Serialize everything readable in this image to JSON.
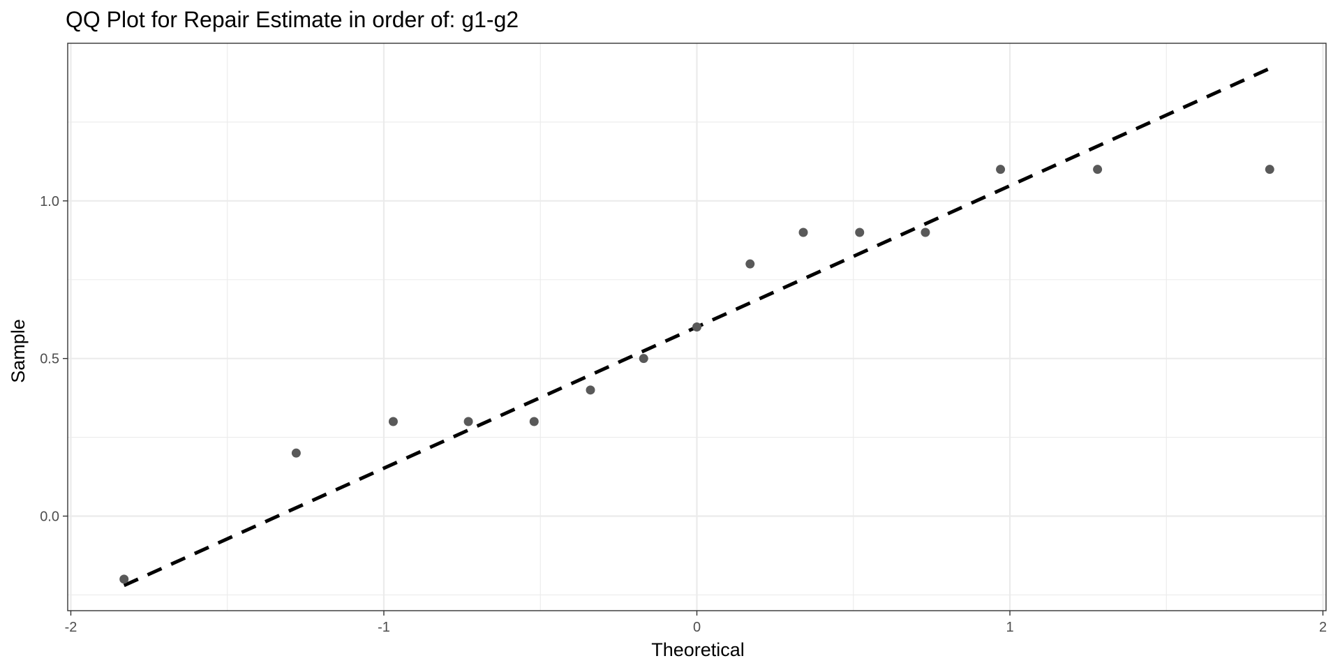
{
  "chart_data": {
    "type": "scatter",
    "title": "QQ Plot for Repair Estimate in order of: g1-g2",
    "xlabel": "Theoretical",
    "ylabel": "Sample",
    "xlim": [
      -2.01,
      2.01
    ],
    "ylim": [
      -0.3,
      1.5
    ],
    "x_ticks": [
      -2,
      -1,
      0,
      1,
      2
    ],
    "x_tick_labels": [
      "-2",
      "-1",
      "0",
      "1",
      "2"
    ],
    "y_ticks": [
      0.0,
      0.5,
      1.0
    ],
    "y_tick_labels": [
      "0.0",
      "0.5",
      "1.0"
    ],
    "x_minor": [
      -1.5,
      -0.5,
      0.5,
      1.5
    ],
    "y_minor": [
      -0.25,
      0.25,
      0.75,
      1.25
    ],
    "grid": true,
    "theme": "bw",
    "point_color": "#595959",
    "line_color": "#000000",
    "series": [
      {
        "type": "points",
        "x": [
          -1.83,
          -1.28,
          -0.97,
          -0.73,
          -0.52,
          -0.34,
          -0.17,
          0.0,
          0.17,
          0.34,
          0.52,
          0.73,
          0.97,
          1.28,
          1.83
        ],
        "y": [
          -0.2,
          0.2,
          0.3,
          0.3,
          0.3,
          0.4,
          0.5,
          0.6,
          0.8,
          0.9,
          0.9,
          0.9,
          1.1,
          1.1,
          1.1
        ]
      },
      {
        "type": "reference-line",
        "style": "dashed",
        "x": [
          -1.83,
          1.83
        ],
        "y": [
          -0.22,
          1.42
        ]
      }
    ]
  }
}
